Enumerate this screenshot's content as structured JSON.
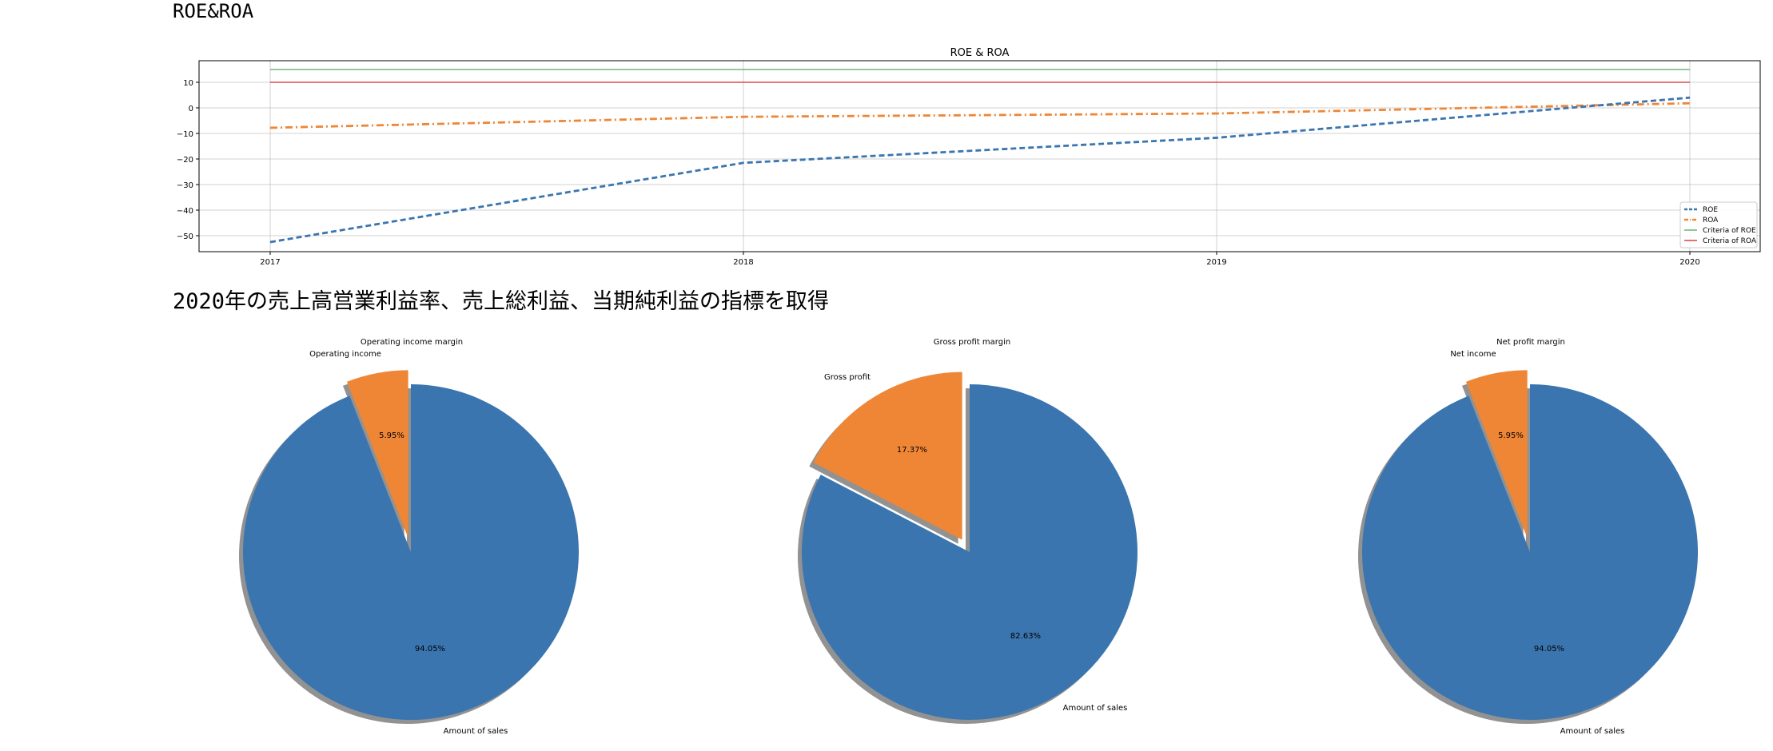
{
  "headings": {
    "section1": "ROE&ROA",
    "section2": "2020年の売上高営業利益率、売上総利益、当期純利益の指標を取得"
  },
  "chart_data": [
    {
      "type": "line",
      "title": "ROE & ROA",
      "x": [
        "2017",
        "2018",
        "2019",
        "2020"
      ],
      "xlabel": "",
      "ylabel": "",
      "ylim": [
        -55,
        18
      ],
      "yticks": [
        10,
        0,
        -10,
        -20,
        -30,
        -40,
        -50
      ],
      "ytick_labels": [
        "10",
        "0",
        "−10",
        "−20",
        "−30",
        "−40",
        "−50"
      ],
      "grid": true,
      "legend_position": "lower-right",
      "series": [
        {
          "name": "ROE",
          "values": [
            -52.5,
            -21.5,
            -11.7,
            4.0
          ],
          "color": "#3b75af",
          "style": "dashed"
        },
        {
          "name": "ROA",
          "values": [
            -7.8,
            -3.5,
            -2.2,
            1.8
          ],
          "color": "#ef8636",
          "style": "dashdot"
        },
        {
          "name": "Criteria of ROE",
          "values": [
            15,
            15,
            15,
            15
          ],
          "color": "#55a868",
          "style": "solid"
        },
        {
          "name": "Criteria of ROA",
          "values": [
            10,
            10,
            10,
            10
          ],
          "color": "#d62728",
          "style": "solid"
        }
      ]
    },
    {
      "type": "pie",
      "title": "Operating income margin",
      "slices": [
        {
          "label": "Amount of sales",
          "value": 94.05,
          "pct_label": "94.05%",
          "color": "#3b75af",
          "explode": false
        },
        {
          "label": "Operating income",
          "value": 5.95,
          "pct_label": "5.95%",
          "color": "#ef8636",
          "explode": true
        }
      ]
    },
    {
      "type": "pie",
      "title": "Gross profit margin",
      "slices": [
        {
          "label": "Amount of sales",
          "value": 82.63,
          "pct_label": "82.63%",
          "color": "#3b75af",
          "explode": false
        },
        {
          "label": "Gross profit",
          "value": 17.37,
          "pct_label": "17.37%",
          "color": "#ef8636",
          "explode": true
        }
      ]
    },
    {
      "type": "pie",
      "title": "Net profit margin",
      "slices": [
        {
          "label": "Amount of sales",
          "value": 94.05,
          "pct_label": "94.05%",
          "color": "#3b75af",
          "explode": false
        },
        {
          "label": "Net income",
          "value": 5.95,
          "pct_label": "5.95%",
          "color": "#ef8636",
          "explode": true
        }
      ]
    }
  ]
}
